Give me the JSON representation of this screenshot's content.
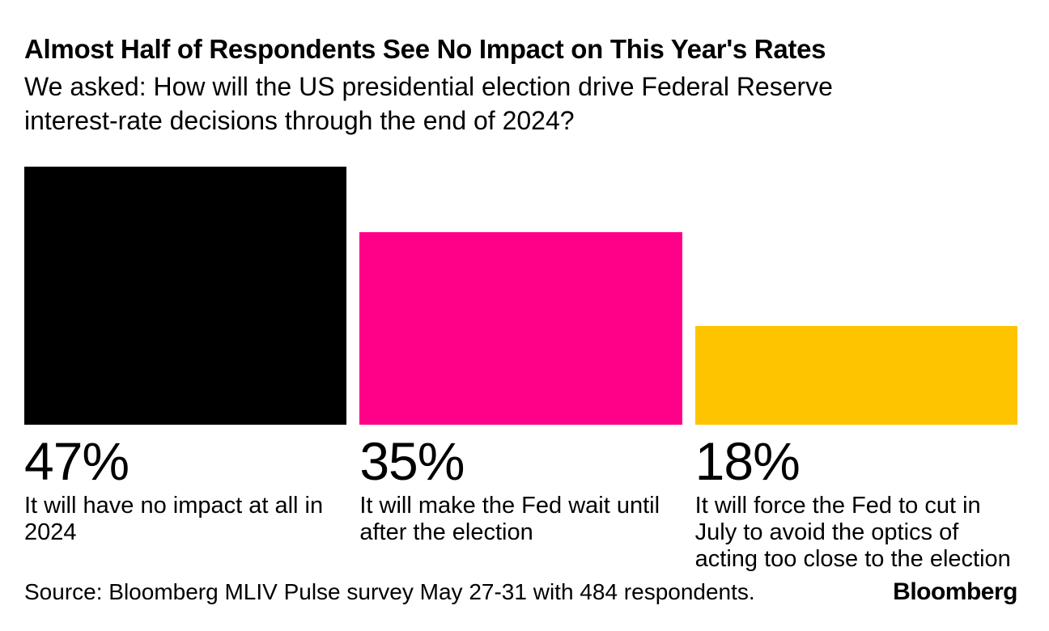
{
  "header": {
    "title": "Almost Half of Respondents See No Impact on This Year's Rates",
    "subtitle": "We asked: How will the US presidential election drive Federal Reserve interest-rate decisions through the end of 2024?"
  },
  "chart_data": {
    "type": "bar",
    "orientation": "vertical",
    "categories": [
      "It will have no impact at all in 2024",
      "It will make the Fed wait until after the election",
      "It will force the Fed to cut in July to avoid the optics of acting too close to the election"
    ],
    "values": [
      47,
      35,
      18
    ],
    "unit": "%",
    "value_labels": [
      "47%",
      "35%",
      "18%"
    ],
    "bar_colors": [
      "#000000",
      "#FF0088",
      "#FFC400"
    ],
    "title": "Almost Half of Respondents See No Impact on This Year's Rates",
    "subtitle": "We asked: How will the US presidential election drive Federal Reserve interest-rate decisions through the end of 2024?",
    "xlabel": "",
    "ylabel": "",
    "ylim": [
      0,
      47
    ],
    "grid": false,
    "legend": false,
    "value_label_position": "below-bar"
  },
  "footer": {
    "source": "Source: Bloomberg MLIV Pulse survey May 27-31 with 484 respondents.",
    "logo": "Bloomberg"
  }
}
